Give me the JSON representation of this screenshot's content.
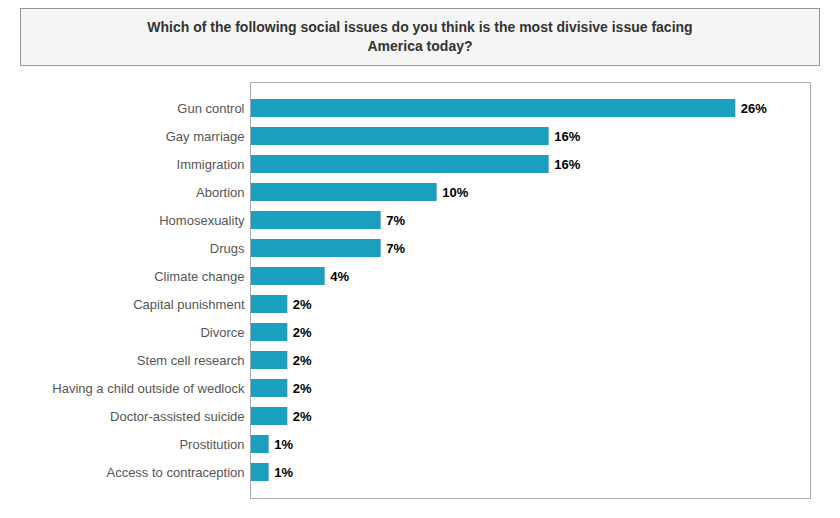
{
  "chart_data": {
    "type": "bar",
    "orientation": "horizontal",
    "title": "Which of the following social issues do you think is the most divisive issue facing\nAmerica today?",
    "categories": [
      "Access to contraception",
      "Prostitution",
      "Doctor-assisted suicide",
      "Having a child outside of wedlock",
      "Stem cell research",
      "Divorce",
      "Capital punishment",
      "Climate change",
      "Drugs",
      "Homosexuality",
      "Abortion",
      "Immigration",
      "Gay marriage",
      "Gun control"
    ],
    "values": [
      1,
      1,
      2,
      2,
      2,
      2,
      2,
      4,
      7,
      7,
      10,
      16,
      16,
      26
    ],
    "value_labels": [
      "1%",
      "1%",
      "2%",
      "2%",
      "2%",
      "2%",
      "2%",
      "4%",
      "7%",
      "7%",
      "10%",
      "16%",
      "16%",
      "26%"
    ],
    "color": "#1a9fbe",
    "xlim": [
      0,
      30
    ],
    "tick_labels": "y",
    "data_labels": true,
    "grid": false
  }
}
